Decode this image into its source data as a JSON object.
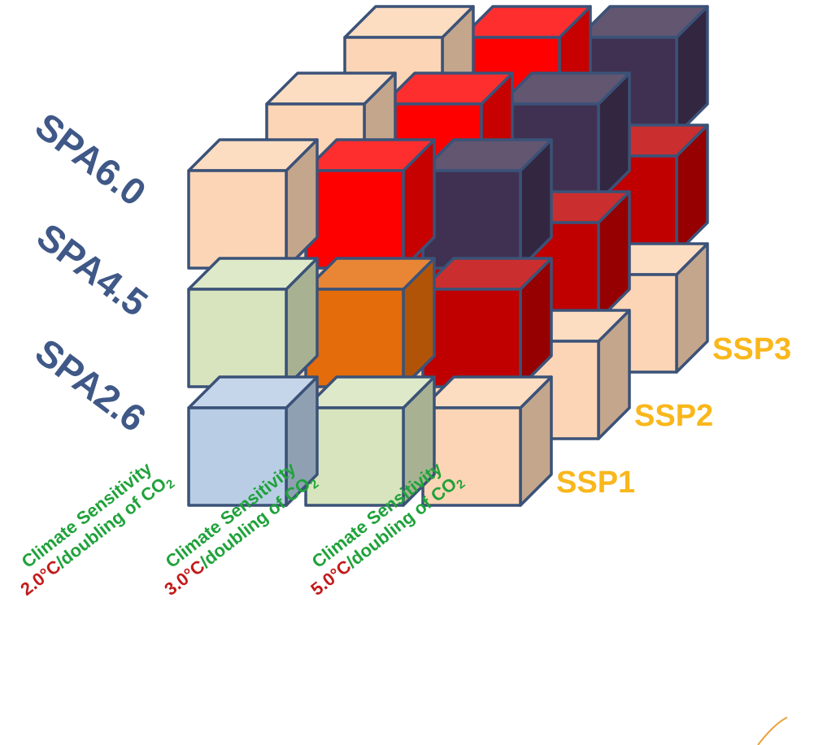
{
  "spa_labels": [
    "SPA6.0",
    "SPA4.5",
    "SPA2.6"
  ],
  "ssp_labels": [
    "SSP3",
    "SSP2",
    "SSP1"
  ],
  "sensitivity": [
    {
      "line1": "Climate Sensitivity",
      "temp": "2.0°C",
      "rest": "/doubling of CO",
      "sub": "2"
    },
    {
      "line1": "Climate Sensitivity",
      "temp": "3.0°C",
      "rest": "/doubling of CO",
      "sub": "2"
    },
    {
      "line1": "Climate Sensitivity",
      "temp": "5.0°C",
      "rest": "/doubling of CO",
      "sub": "2"
    }
  ],
  "colors": {
    "peach": "#fbd5b5",
    "light_green": "#d7e4bd",
    "light_blue": "#b9cde5",
    "orange": "#e46c0a",
    "bright_red": "#ff0000",
    "dark_red": "#c00000",
    "dark_purple": "#403152",
    "edge": "#3b5278"
  },
  "grid": {
    "note_layers": "depth 0 = SSP1 (front), depth 1 = SSP2, depth 2 = SSP3 (back)",
    "layers": [
      [
        [
          "light_blue",
          "light_green",
          "peach"
        ],
        [
          "light_green",
          "orange",
          "dark_red"
        ],
        [
          "peach",
          "bright_red",
          "dark_purple"
        ]
      ],
      [
        [
          "peach",
          "peach",
          "peach"
        ],
        [
          "peach",
          "dark_red",
          "dark_red"
        ],
        [
          "peach",
          "bright_red",
          "dark_purple"
        ]
      ],
      [
        [
          "peach",
          "peach",
          "peach"
        ],
        [
          "peach",
          "dark_red",
          "dark_red"
        ],
        [
          "peach",
          "bright_red",
          "dark_purple"
        ]
      ]
    ]
  }
}
